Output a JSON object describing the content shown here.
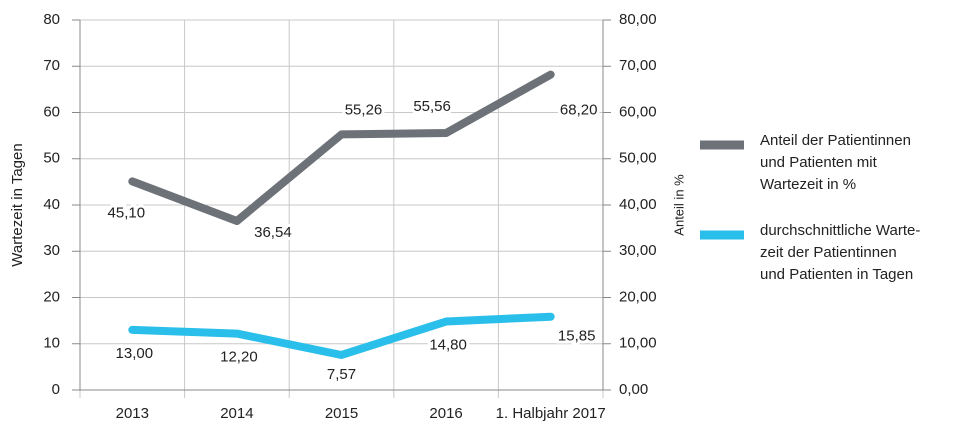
{
  "chart_data": {
    "type": "line",
    "y_label": "Wartezeit in Tagen",
    "y2_label": "Anteil in %",
    "categories": [
      "2013",
      "2014",
      "2015",
      "2016",
      "1. Halbjahr 2017"
    ],
    "series": [
      {
        "name": "Anteil der Patientinnen\nund Patienten mit\nWartezeit in %",
        "color": "#6d7278",
        "axis": "y2",
        "values": [
          45.1,
          36.54,
          55.26,
          55.56,
          68.2
        ],
        "value_labels": [
          "45,10",
          "36,54",
          "55,26",
          "55,56",
          "68,20"
        ]
      },
      {
        "name": "durchschnittliche Warte-\nzeit der Patientinnen\nund Patienten in Tagen",
        "color": "#29bfea",
        "axis": "y",
        "values": [
          13.0,
          12.2,
          7.57,
          14.8,
          15.85
        ],
        "value_labels": [
          "13,00",
          "12,20",
          "7,57",
          "14,80",
          "15,85"
        ]
      }
    ],
    "ylim": [
      0,
      80
    ],
    "yticks": [
      0,
      10,
      20,
      30,
      40,
      50,
      60,
      70,
      80
    ],
    "y2lim": [
      0,
      80
    ],
    "y2ticks": [
      {
        "value": 0,
        "label": "0,00"
      },
      {
        "value": 10,
        "label": "10,00"
      },
      {
        "value": 20,
        "label": "20,00"
      },
      {
        "value": 30,
        "label": "30,00"
      },
      {
        "value": 40,
        "label": "40,00"
      },
      {
        "value": 50,
        "label": "50,00"
      },
      {
        "value": 60,
        "label": "60,00"
      },
      {
        "value": 70,
        "label": "70,00"
      },
      {
        "value": 80,
        "label": "80,00"
      }
    ],
    "grid": true
  }
}
